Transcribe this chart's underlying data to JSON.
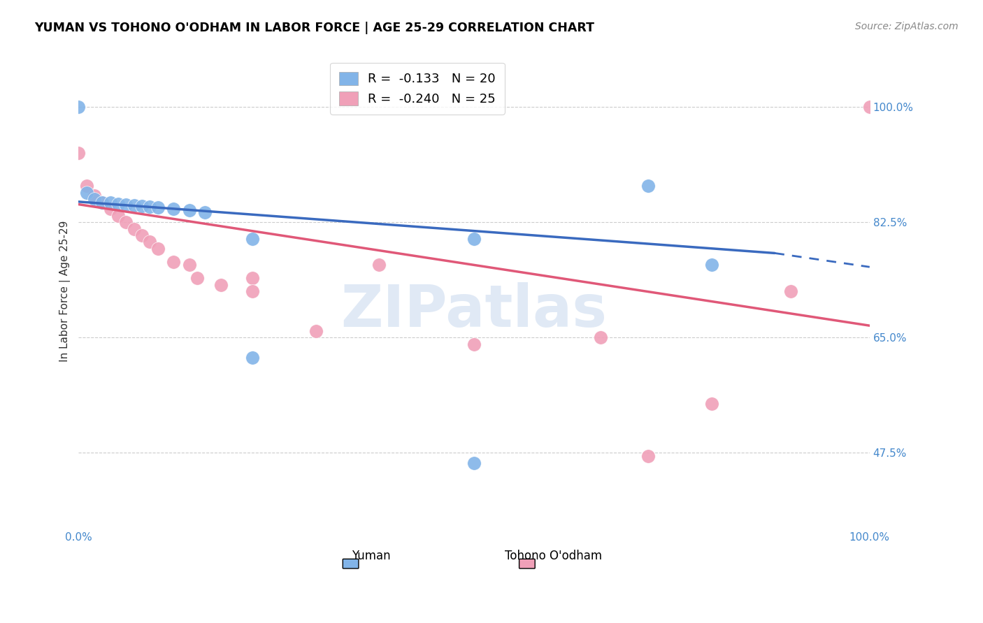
{
  "title": "YUMAN VS TOHONO O'ODHAM IN LABOR FORCE | AGE 25-29 CORRELATION CHART",
  "source": "Source: ZipAtlas.com",
  "ylabel": "In Labor Force | Age 25-29",
  "yticks": [
    0.475,
    0.65,
    0.825,
    1.0
  ],
  "ytick_labels": [
    "47.5%",
    "65.0%",
    "82.5%",
    "100.0%"
  ],
  "xlim": [
    0.0,
    1.0
  ],
  "ylim": [
    0.36,
    1.08
  ],
  "watermark_text": "ZIPatlas",
  "legend_label1": "R =  -0.133   N = 20",
  "legend_label2": "R =  -0.240   N = 25",
  "yuman_color": "#82b4e8",
  "tohono_color": "#f0a0b8",
  "trendline1_color": "#3a6abf",
  "trendline2_color": "#e05878",
  "yuman_x": [
    0.0,
    0.01,
    0.02,
    0.03,
    0.04,
    0.05,
    0.06,
    0.07,
    0.08,
    0.09,
    0.1,
    0.12,
    0.14,
    0.16,
    0.22,
    0.5,
    0.72,
    0.8,
    0.22,
    0.5
  ],
  "yuman_y": [
    1.0,
    0.87,
    0.86,
    0.855,
    0.855,
    0.853,
    0.852,
    0.85,
    0.849,
    0.848,
    0.847,
    0.845,
    0.843,
    0.84,
    0.8,
    0.8,
    0.88,
    0.76,
    0.62,
    0.46
  ],
  "tohono_x": [
    0.0,
    0.01,
    0.02,
    0.03,
    0.04,
    0.05,
    0.06,
    0.07,
    0.08,
    0.09,
    0.1,
    0.12,
    0.15,
    0.22,
    0.22,
    0.3,
    0.38,
    0.66,
    0.8,
    0.9,
    1.0,
    0.14,
    0.18,
    0.5,
    0.72
  ],
  "tohono_y": [
    0.93,
    0.88,
    0.865,
    0.855,
    0.845,
    0.835,
    0.825,
    0.815,
    0.805,
    0.795,
    0.785,
    0.765,
    0.74,
    0.74,
    0.72,
    0.66,
    0.76,
    0.65,
    0.55,
    0.72,
    1.0,
    0.76,
    0.73,
    0.64,
    0.47
  ],
  "trendline1_x0": 0.0,
  "trendline1_x1": 0.88,
  "trendline1_y0": 0.856,
  "trendline1_y1": 0.778,
  "trendline1_ext_x1": 1.0,
  "trendline1_ext_y1": 0.757,
  "trendline2_x0": 0.0,
  "trendline2_x1": 1.0,
  "trendline2_y0": 0.852,
  "trendline2_y1": 0.668
}
